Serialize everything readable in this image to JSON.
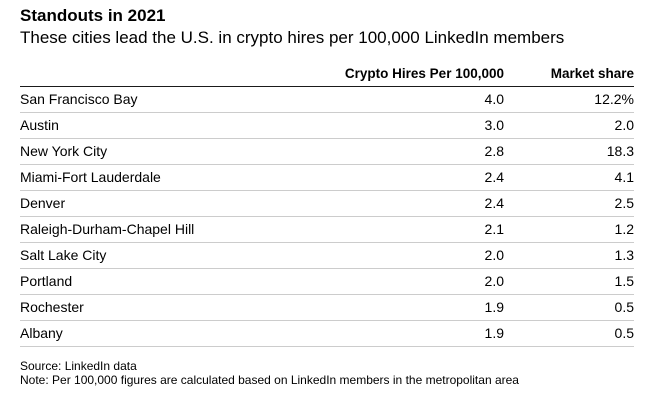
{
  "title": "Standouts in 2021",
  "subtitle": "These cities lead the U.S. in crypto hires per 100,000 LinkedIn members",
  "chart_data": {
    "type": "table",
    "columns": [
      "",
      "Crypto Hires Per 100,000",
      "Market share"
    ],
    "rows": [
      {
        "city": "San Francisco Bay",
        "hires": "4.0",
        "share": "12.2%"
      },
      {
        "city": "Austin",
        "hires": "3.0",
        "share": "2.0"
      },
      {
        "city": "New York City",
        "hires": "2.8",
        "share": "18.3"
      },
      {
        "city": "Miami-Fort Lauderdale",
        "hires": "2.4",
        "share": "4.1"
      },
      {
        "city": "Denver",
        "hires": "2.4",
        "share": "2.5"
      },
      {
        "city": "Raleigh-Durham-Chapel Hill",
        "hires": "2.1",
        "share": "1.2"
      },
      {
        "city": "Salt Lake City",
        "hires": "2.0",
        "share": "1.3"
      },
      {
        "city": "Portland",
        "hires": "2.0",
        "share": "1.5"
      },
      {
        "city": "Rochester",
        "hires": "1.9",
        "share": "0.5"
      },
      {
        "city": "Albany",
        "hires": "1.9",
        "share": "0.5"
      }
    ]
  },
  "source": "Source: LinkedIn data",
  "note": "Note: Per 100,000 figures are calculated based on LinkedIn members in the metropolitan area"
}
